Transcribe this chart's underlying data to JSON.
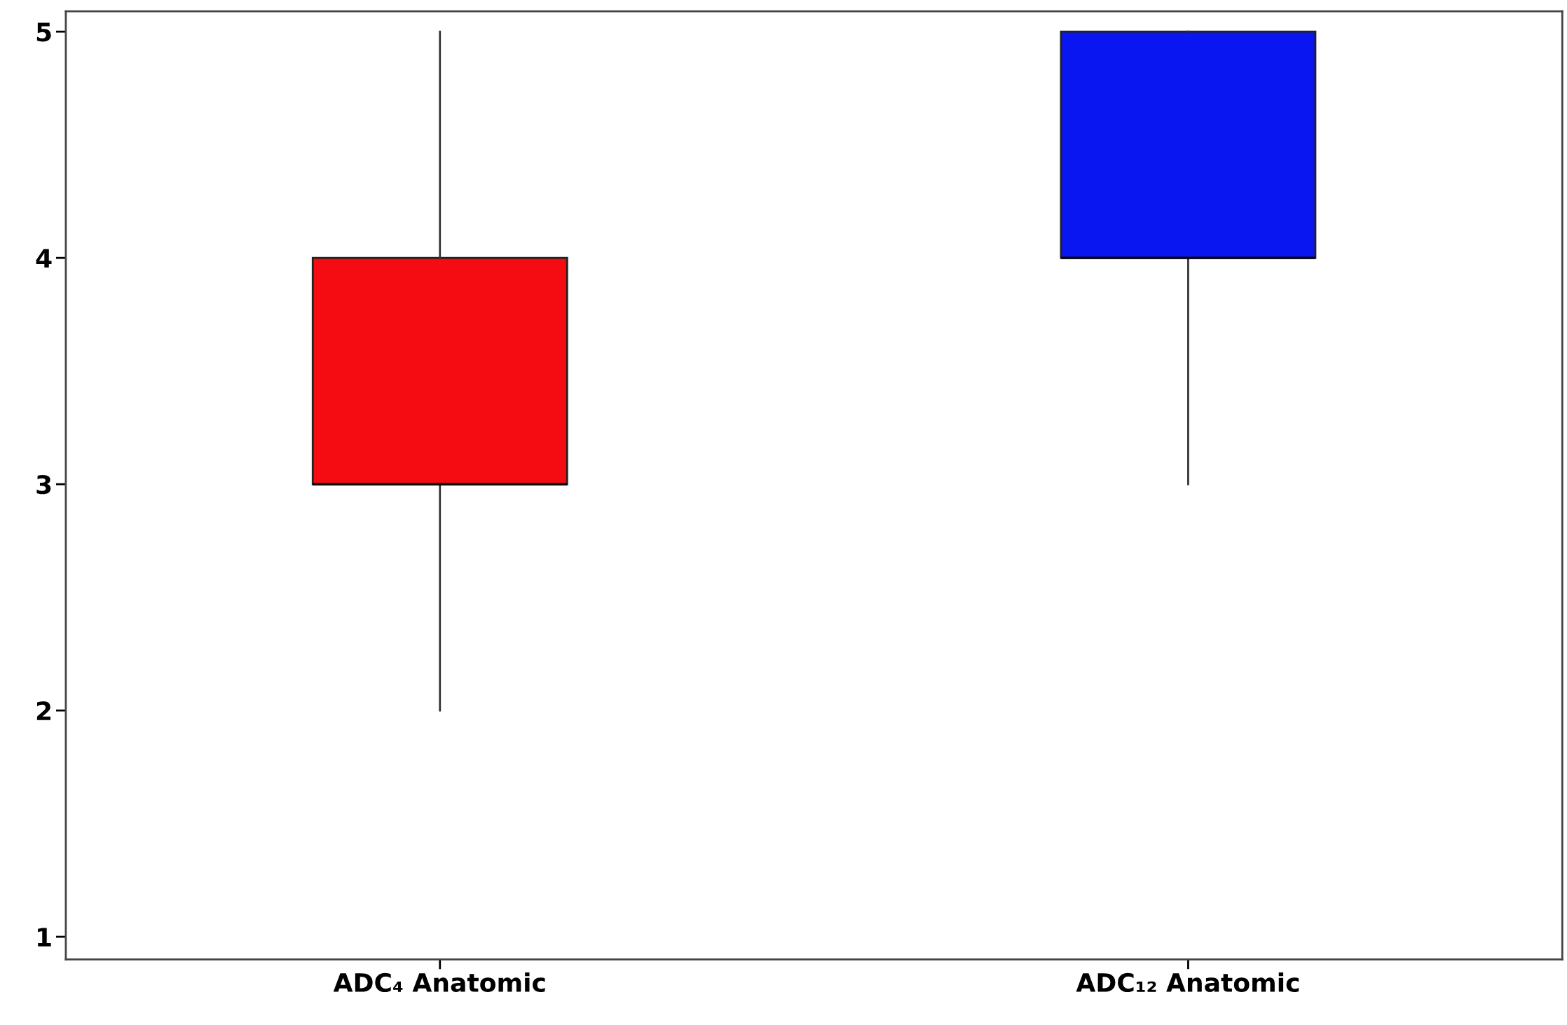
{
  "chart_data": {
    "type": "box",
    "categories": [
      "ADC₄ Anatomic",
      "ADC₁₂ Anatomic"
    ],
    "boxes": [
      {
        "low": 2,
        "q1": 3,
        "median": 3,
        "q3": 4,
        "high": 5
      },
      {
        "low": 3,
        "q1": 4,
        "median": 4,
        "q3": 5,
        "high": 5
      }
    ],
    "colors": [
      "#f40c12",
      "#0a16f2"
    ],
    "ylim": [
      0.9,
      5.09
    ],
    "yticks": [
      1,
      2,
      3,
      4,
      5
    ],
    "grid": false
  }
}
